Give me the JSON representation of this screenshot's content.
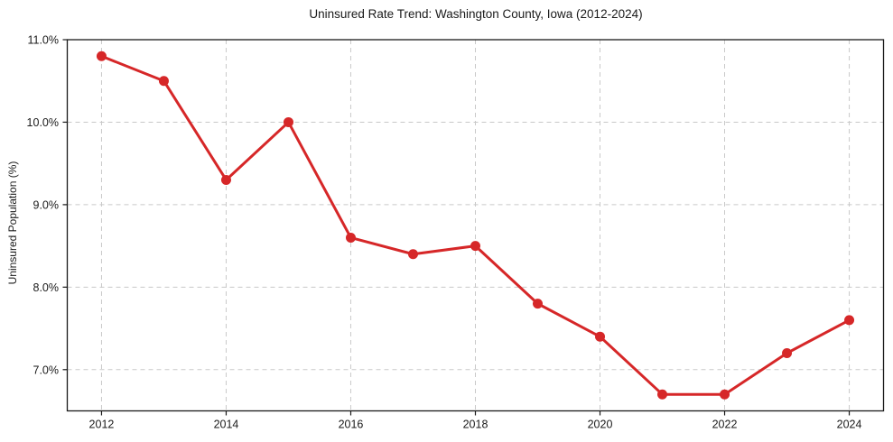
{
  "chart_data": {
    "type": "line",
    "title": "Uninsured Rate Trend: Washington County, Iowa (2012-2024)",
    "xlabel": "",
    "ylabel": "Uninsured Population (%)",
    "x": [
      2012,
      2013,
      2014,
      2015,
      2016,
      2017,
      2018,
      2019,
      2020,
      2021,
      2022,
      2023,
      2024
    ],
    "values": [
      10.8,
      10.5,
      9.3,
      10.0,
      8.6,
      8.4,
      8.5,
      7.8,
      7.4,
      6.7,
      6.7,
      7.2,
      7.6
    ],
    "xticks": [
      {
        "value": 2012,
        "label": "2012"
      },
      {
        "value": 2014,
        "label": "2014"
      },
      {
        "value": 2016,
        "label": "2016"
      },
      {
        "value": 2018,
        "label": "2018"
      },
      {
        "value": 2020,
        "label": "2020"
      },
      {
        "value": 2022,
        "label": "2022"
      },
      {
        "value": 2024,
        "label": "2024"
      }
    ],
    "yticks": [
      {
        "value": 7.0,
        "label": "7.0%"
      },
      {
        "value": 8.0,
        "label": "8.0%"
      },
      {
        "value": 9.0,
        "label": "9.0%"
      },
      {
        "value": 10.0,
        "label": "10.0%"
      },
      {
        "value": 11.0,
        "label": "11.0%"
      }
    ],
    "xlim": [
      2011.45,
      2024.55
    ],
    "ylim": [
      6.5,
      11.0
    ],
    "grid": "dashed",
    "legend": "none",
    "colors": {
      "line": "#d62728",
      "marker": "#d62728",
      "grid": "#c9c9c9",
      "spine": "#1a1a1a",
      "text": "#1a1a1a",
      "background": "#ffffff"
    }
  }
}
